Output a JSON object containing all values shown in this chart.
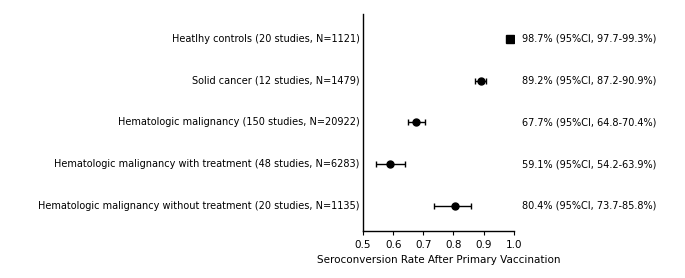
{
  "categories": [
    "Hematologic malignancy without treatment (20 studies, N=1135)",
    "Hematologic malignancy with treatment (48 studies, N=6283)",
    "Hematologic malignancy (150 studies, N=20922)",
    "Solid cancer (12 studies, N=1479)",
    "Heatlhy controls (20 studies, N=1121)"
  ],
  "estimates": [
    0.804,
    0.591,
    0.677,
    0.892,
    0.987
  ],
  "ci_low": [
    0.737,
    0.542,
    0.648,
    0.872,
    0.977
  ],
  "ci_high": [
    0.858,
    0.639,
    0.704,
    0.909,
    0.993
  ],
  "labels": [
    "80.4% (95%CI, 73.7-85.8%)",
    "59.1% (95%CI, 54.2-63.9%)",
    "67.7% (95%CI, 64.8-70.4%)",
    "89.2% (95%CI, 87.2-90.9%)",
    "98.7% (95%CI, 97.7-99.3%)"
  ],
  "marker_styles": [
    "o",
    "o",
    "o",
    "o",
    "s"
  ],
  "xlim": [
    0.5,
    1.0
  ],
  "xticks": [
    0.5,
    0.6,
    0.7,
    0.8,
    0.9,
    1.0
  ],
  "xlabel": "Seroconversion Rate After Primary Vaccination",
  "line_color": "#000000",
  "marker_color": "#000000",
  "marker_size": 5,
  "square_size": 6,
  "capsize": 2.5,
  "label_fontsize": 7.0,
  "axis_fontsize": 7.5,
  "tick_fontsize": 7.5,
  "cat_fontsize": 7.0
}
